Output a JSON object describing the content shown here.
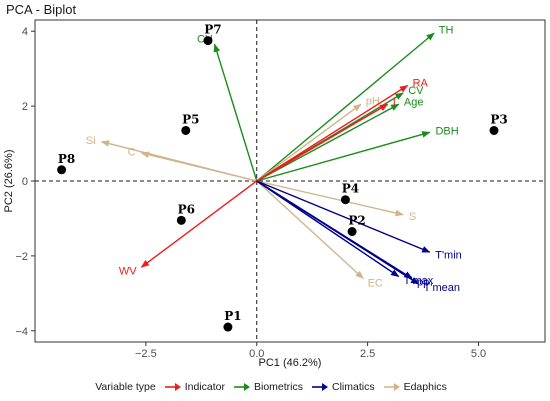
{
  "chart_data": {
    "type": "scatter",
    "title": "PCA - Biplot",
    "xlabel": "PC1 (46.2%)",
    "ylabel": "PC2 (26.6%)",
    "xlim": [
      -5.0,
      6.5
    ],
    "ylim": [
      -4.3,
      4.3
    ],
    "xticks": [
      -2.5,
      0.0,
      2.5,
      5.0
    ],
    "xtick_labels": [
      "−2.5",
      "0.0",
      "2.5",
      "5.0"
    ],
    "yticks": [
      -4,
      -2,
      0,
      2,
      4
    ],
    "ytick_labels": [
      "−4",
      "−2",
      "0",
      "2",
      "4"
    ],
    "grid": false,
    "reference_lines": {
      "x": 0,
      "y": 0,
      "style": "dashed"
    },
    "legend_position": "bottom",
    "legend_title": "Variable type",
    "points": [
      {
        "label": "P1",
        "x": -0.65,
        "y": -3.9
      },
      {
        "label": "P2",
        "x": 2.15,
        "y": -1.35
      },
      {
        "label": "P3",
        "x": 5.35,
        "y": 1.35
      },
      {
        "label": "P4",
        "x": 2.0,
        "y": -0.5
      },
      {
        "label": "P5",
        "x": -1.6,
        "y": 1.35
      },
      {
        "label": "P6",
        "x": -1.7,
        "y": -1.05
      },
      {
        "label": "P7",
        "x": -1.1,
        "y": 3.75
      },
      {
        "label": "P8",
        "x": -4.4,
        "y": 0.3
      }
    ],
    "variable_types": [
      {
        "name": "Indicator",
        "color": "#ee1c1c"
      },
      {
        "name": "Biometrics",
        "color": "#1a8c1a"
      },
      {
        "name": "Climatics",
        "color": "#00008b"
      },
      {
        "name": "Edaphics",
        "color": "#d2b48c"
      }
    ],
    "vectors": [
      {
        "label": "TH",
        "type": "Biometrics",
        "x": 4.0,
        "y": 3.95
      },
      {
        "label": "CH",
        "type": "Biometrics",
        "x": -0.95,
        "y": 3.65
      },
      {
        "label": "CV",
        "type": "Biometrics",
        "x": 3.3,
        "y": 2.35
      },
      {
        "label": "Age",
        "type": "Biometrics",
        "x": 3.2,
        "y": 2.05
      },
      {
        "label": "DBH",
        "type": "Biometrics",
        "x": 3.9,
        "y": 1.3
      },
      {
        "label": "pH",
        "type": "Edaphics",
        "x": 2.35,
        "y": 2.05
      },
      {
        "label": "Si",
        "type": "Edaphics",
        "x": -3.5,
        "y": 1.05
      },
      {
        "label": "C",
        "type": "Edaphics",
        "x": -2.6,
        "y": 0.75
      },
      {
        "label": "S",
        "type": "Edaphics",
        "x": 3.3,
        "y": -0.9
      },
      {
        "label": "EC",
        "type": "Edaphics",
        "x": 2.4,
        "y": -2.6
      },
      {
        "label": "RA",
        "type": "Indicator",
        "x": 3.4,
        "y": 2.55
      },
      {
        "label": "I",
        "type": "Indicator",
        "x": 2.95,
        "y": 2.05
      },
      {
        "label": "WV",
        "type": "Indicator",
        "x": -2.6,
        "y": -2.3
      },
      {
        "label": "T'min",
        "type": "Climatics",
        "x": 3.9,
        "y": -1.9
      },
      {
        "label": "T'max",
        "type": "Climatics",
        "x": 3.2,
        "y": -2.55
      },
      {
        "label": "pp",
        "type": "Climatics",
        "x": 3.5,
        "y": -2.6
      },
      {
        "label": "T'mean",
        "type": "Climatics",
        "x": 3.65,
        "y": -2.75
      }
    ]
  }
}
